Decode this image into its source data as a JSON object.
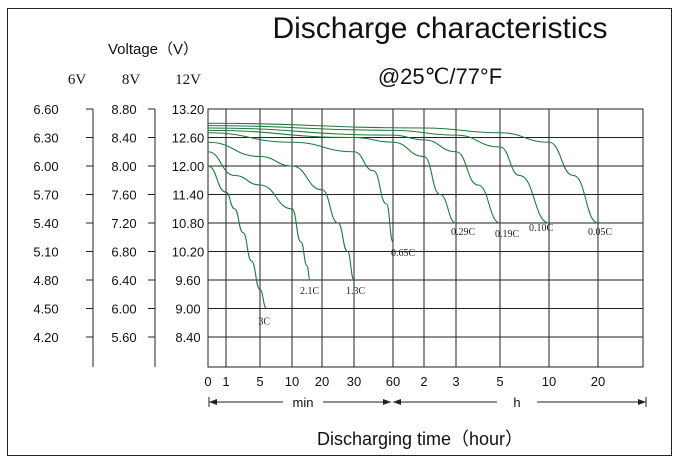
{
  "chart_data": {
    "type": "line",
    "title": "Discharge characteristics",
    "subtitle": "@25℃/77°F",
    "ylabel": "Voltage（V）",
    "xlabel": "Discharging time（hour）",
    "y_scales": [
      {
        "header": "6V",
        "ticks": [
          "6.60",
          "6.30",
          "6.00",
          "5.70",
          "5.40",
          "5.10",
          "4.80",
          "4.50",
          "4.20"
        ]
      },
      {
        "header": "8V",
        "ticks": [
          "8.80",
          "8.40",
          "8.00",
          "7.60",
          "7.20",
          "6.80",
          "6.40",
          "6.00",
          "5.60"
        ]
      },
      {
        "header": "12V",
        "ticks": [
          "13.20",
          "12.60",
          "12.00",
          "11.40",
          "10.80",
          "10.20",
          "9.60",
          "9.00",
          "8.40"
        ]
      }
    ],
    "ylim": [
      8.4,
      13.2
    ],
    "x_ticks": [
      {
        "label": "0",
        "minutes": 0
      },
      {
        "label": "1",
        "minutes": 1
      },
      {
        "label": "5",
        "minutes": 5
      },
      {
        "label": "10",
        "minutes": 10
      },
      {
        "label": "20",
        "minutes": 20
      },
      {
        "label": "30",
        "minutes": 30
      },
      {
        "label": "60",
        "minutes": 60
      },
      {
        "label": "2",
        "minutes": 120
      },
      {
        "label": "3",
        "minutes": 180
      },
      {
        "label": "5",
        "minutes": 300
      },
      {
        "label": "10",
        "minutes": 600
      },
      {
        "label": "20",
        "minutes": 1200
      }
    ],
    "x_unit_min": "min",
    "x_unit_h": "h",
    "series": [
      {
        "name": "3C",
        "points": [
          [
            0,
            12.0
          ],
          [
            1,
            11.45
          ],
          [
            2,
            11.1
          ],
          [
            3,
            10.6
          ],
          [
            4,
            10.0
          ],
          [
            5,
            9.4
          ],
          [
            6,
            9.0
          ]
        ]
      },
      {
        "name": "2.1C",
        "points": [
          [
            0,
            12.3
          ],
          [
            2,
            11.8
          ],
          [
            5,
            11.6
          ],
          [
            10,
            11.1
          ],
          [
            13,
            10.4
          ],
          [
            15,
            9.9
          ],
          [
            16,
            9.6
          ]
        ]
      },
      {
        "name": "1.3C",
        "points": [
          [
            0,
            12.5
          ],
          [
            5,
            12.2
          ],
          [
            10,
            12.0
          ],
          [
            20,
            11.5
          ],
          [
            25,
            10.8
          ],
          [
            28,
            10.2
          ],
          [
            30,
            9.6
          ]
        ]
      },
      {
        "name": "0.65C",
        "points": [
          [
            0,
            12.7
          ],
          [
            10,
            12.5
          ],
          [
            30,
            12.3
          ],
          [
            45,
            11.9
          ],
          [
            55,
            11.2
          ],
          [
            60,
            10.4
          ]
        ]
      },
      {
        "name": "0.29C",
        "points": [
          [
            0,
            12.75
          ],
          [
            30,
            12.6
          ],
          [
            60,
            12.5
          ],
          [
            120,
            12.2
          ],
          [
            150,
            11.4
          ],
          [
            180,
            10.8
          ]
        ]
      },
      {
        "name": "0.19C",
        "points": [
          [
            0,
            12.8
          ],
          [
            60,
            12.65
          ],
          [
            120,
            12.55
          ],
          [
            180,
            12.3
          ],
          [
            240,
            11.6
          ],
          [
            300,
            10.8
          ]
        ]
      },
      {
        "name": "0.10C",
        "points": [
          [
            0,
            12.85
          ],
          [
            60,
            12.75
          ],
          [
            180,
            12.65
          ],
          [
            300,
            12.4
          ],
          [
            420,
            11.8
          ],
          [
            600,
            10.8
          ]
        ]
      },
      {
        "name": "0.05C",
        "points": [
          [
            0,
            12.9
          ],
          [
            120,
            12.8
          ],
          [
            300,
            12.7
          ],
          [
            600,
            12.5
          ],
          [
            900,
            11.8
          ],
          [
            1200,
            10.8
          ]
        ]
      }
    ],
    "grid": true
  }
}
